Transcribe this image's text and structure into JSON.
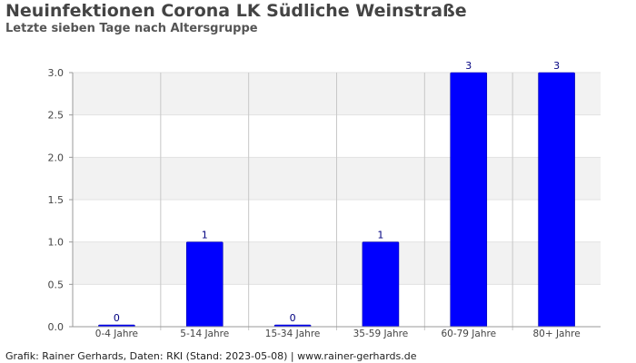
{
  "header": {
    "title": "Neuinfektionen Corona LK Südliche Weinstraße",
    "subtitle": "Letzte sieben Tage nach Altersgruppe"
  },
  "footer": {
    "credit": "Grafik: Rainer Gerhards, Daten: RKI (Stand: 2023-05-08) | www.rainer-gerhards.de"
  },
  "chart_data": {
    "type": "bar",
    "title": "Neuinfektionen Corona LK Südliche Weinstraße",
    "subtitle": "Letzte sieben Tage nach Altersgruppe",
    "categories": [
      "0-4 Jahre",
      "5-14 Jahre",
      "15-34 Jahre",
      "35-59 Jahre",
      "60-79 Jahre",
      "80+ Jahre"
    ],
    "values": [
      0,
      1,
      0,
      1,
      3,
      3
    ],
    "data_labels": [
      "0",
      "1",
      "0",
      "1",
      "3",
      "3"
    ],
    "xlabel": "",
    "ylabel": "",
    "ylim": [
      0,
      3
    ],
    "yticks": [
      0,
      0.5,
      1,
      1.5,
      2,
      2.5,
      3
    ],
    "ytick_labels": [
      "0.0",
      "0.5",
      "1.0",
      "1.5",
      "2.0",
      "2.5",
      "3.0"
    ],
    "grid": true,
    "legend": false,
    "colors": {
      "bar": "#0000ff",
      "data_label": "#000080",
      "band": "#f2f2f2",
      "grid": "#c8c8c8",
      "axis": "#999999",
      "tick_label": "#444444"
    }
  }
}
